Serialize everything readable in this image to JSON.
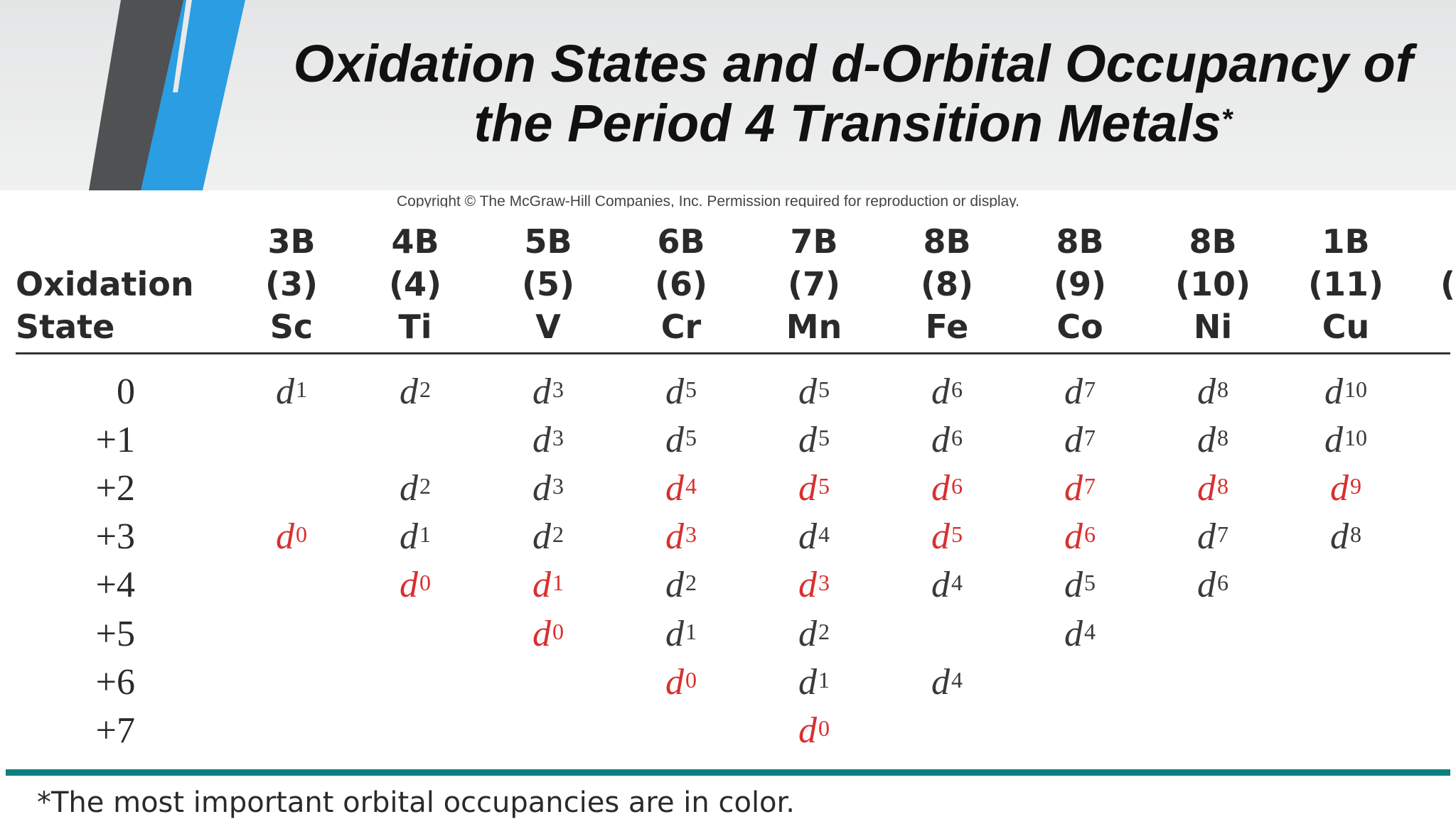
{
  "title": {
    "line1": "Oxidation States and d-Orbital Occupancy of",
    "line2": "the Period 4 Transition Metals",
    "mark": "*"
  },
  "copyright": "Copyright © The McGraw-Hill Companies, Inc. Permission required for reproduction or display.",
  "table": {
    "row_header_lines": [
      "Oxidation",
      "State"
    ],
    "columns": [
      {
        "group": "3B",
        "number": "(3)",
        "element": "Sc"
      },
      {
        "group": "4B",
        "number": "(4)",
        "element": "Ti"
      },
      {
        "group": "5B",
        "number": "(5)",
        "element": "V"
      },
      {
        "group": "6B",
        "number": "(6)",
        "element": "Cr"
      },
      {
        "group": "7B",
        "number": "(7)",
        "element": "Mn"
      },
      {
        "group": "8B",
        "number": "(8)",
        "element": "Fe"
      },
      {
        "group": "8B",
        "number": "(9)",
        "element": "Co"
      },
      {
        "group": "8B",
        "number": "(10)",
        "element": "Ni"
      },
      {
        "group": "1B",
        "number": "(11)",
        "element": "Cu"
      }
    ],
    "edge_fragment": "(",
    "highlight_color": "#d8302f",
    "rows": [
      {
        "state": "0",
        "cells": [
          {
            "v": "1",
            "red": false
          },
          {
            "v": "2",
            "red": false
          },
          {
            "v": "3",
            "red": false
          },
          {
            "v": "5",
            "red": false
          },
          {
            "v": "5",
            "red": false
          },
          {
            "v": "6",
            "red": false
          },
          {
            "v": "7",
            "red": false
          },
          {
            "v": "8",
            "red": false
          },
          {
            "v": "10",
            "red": false
          }
        ]
      },
      {
        "state": "+1",
        "cells": [
          null,
          null,
          {
            "v": "3",
            "red": false
          },
          {
            "v": "5",
            "red": false
          },
          {
            "v": "5",
            "red": false
          },
          {
            "v": "6",
            "red": false
          },
          {
            "v": "7",
            "red": false
          },
          {
            "v": "8",
            "red": false
          },
          {
            "v": "10",
            "red": false
          }
        ]
      },
      {
        "state": "+2",
        "cells": [
          null,
          {
            "v": "2",
            "red": false
          },
          {
            "v": "3",
            "red": false
          },
          {
            "v": "4",
            "red": true
          },
          {
            "v": "5",
            "red": true
          },
          {
            "v": "6",
            "red": true
          },
          {
            "v": "7",
            "red": true
          },
          {
            "v": "8",
            "red": true
          },
          {
            "v": "9",
            "red": true
          }
        ]
      },
      {
        "state": "+3",
        "cells": [
          {
            "v": "0",
            "red": true
          },
          {
            "v": "1",
            "red": false
          },
          {
            "v": "2",
            "red": false
          },
          {
            "v": "3",
            "red": true
          },
          {
            "v": "4",
            "red": false
          },
          {
            "v": "5",
            "red": true
          },
          {
            "v": "6",
            "red": true
          },
          {
            "v": "7",
            "red": false
          },
          {
            "v": "8",
            "red": false
          }
        ]
      },
      {
        "state": "+4",
        "cells": [
          null,
          {
            "v": "0",
            "red": true
          },
          {
            "v": "1",
            "red": true
          },
          {
            "v": "2",
            "red": false
          },
          {
            "v": "3",
            "red": true
          },
          {
            "v": "4",
            "red": false
          },
          {
            "v": "5",
            "red": false
          },
          {
            "v": "6",
            "red": false
          },
          null
        ]
      },
      {
        "state": "+5",
        "cells": [
          null,
          null,
          {
            "v": "0",
            "red": true
          },
          {
            "v": "1",
            "red": false
          },
          {
            "v": "2",
            "red": false
          },
          null,
          {
            "v": "4",
            "red": false
          },
          null,
          null
        ]
      },
      {
        "state": "+6",
        "cells": [
          null,
          null,
          null,
          {
            "v": "0",
            "red": true
          },
          {
            "v": "1",
            "red": false
          },
          {
            "v": "4",
            "red": false
          },
          null,
          null,
          null
        ]
      },
      {
        "state": "+7",
        "cells": [
          null,
          null,
          null,
          null,
          {
            "v": "0",
            "red": true
          },
          null,
          null,
          null,
          null
        ]
      }
    ],
    "cell_prefix": "d"
  },
  "footnote": "*The most important orbital occupancies are in color."
}
